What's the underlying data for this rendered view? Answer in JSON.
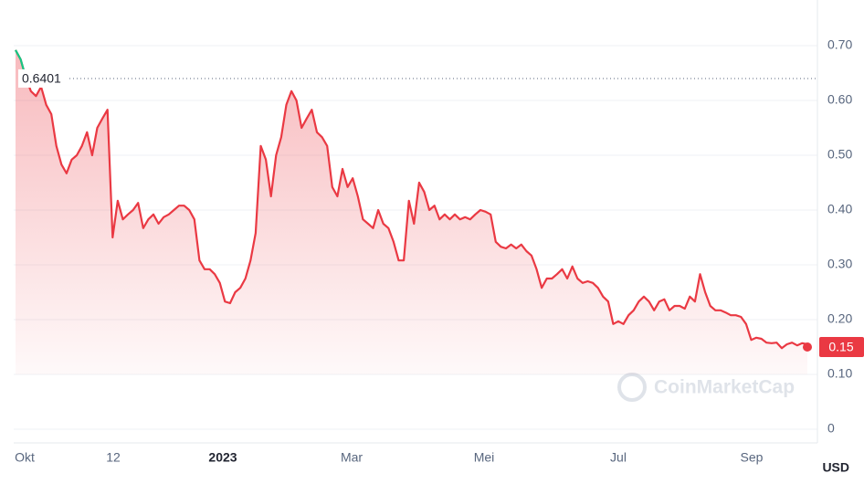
{
  "chart_data": {
    "type": "line",
    "x_labels": [
      "Okt",
      "12",
      "2023",
      "Mar",
      "Mei",
      "Jul",
      "Sep"
    ],
    "values": [
      0.692,
      0.675,
      0.642,
      0.617,
      0.608,
      0.625,
      0.592,
      0.575,
      0.517,
      0.483,
      0.467,
      0.492,
      0.5,
      0.517,
      0.542,
      0.5,
      0.55,
      0.567,
      0.583,
      0.35,
      0.417,
      0.383,
      0.392,
      0.4,
      0.413,
      0.367,
      0.383,
      0.392,
      0.375,
      0.387,
      0.392,
      0.4,
      0.408,
      0.408,
      0.4,
      0.383,
      0.308,
      0.292,
      0.292,
      0.283,
      0.267,
      0.233,
      0.23,
      0.25,
      0.258,
      0.275,
      0.308,
      0.358,
      0.517,
      0.492,
      0.425,
      0.5,
      0.533,
      0.592,
      0.617,
      0.6,
      0.55,
      0.567,
      0.583,
      0.542,
      0.533,
      0.517,
      0.442,
      0.425,
      0.475,
      0.442,
      0.458,
      0.425,
      0.383,
      0.375,
      0.367,
      0.4,
      0.375,
      0.367,
      0.342,
      0.308,
      0.308,
      0.417,
      0.375,
      0.45,
      0.433,
      0.4,
      0.408,
      0.383,
      0.392,
      0.383,
      0.392,
      0.383,
      0.387,
      0.383,
      0.392,
      0.4,
      0.397,
      0.392,
      0.342,
      0.333,
      0.33,
      0.337,
      0.33,
      0.337,
      0.325,
      0.317,
      0.292,
      0.258,
      0.275,
      0.275,
      0.283,
      0.292,
      0.275,
      0.297,
      0.275,
      0.267,
      0.27,
      0.267,
      0.258,
      0.242,
      0.233,
      0.192,
      0.197,
      0.192,
      0.208,
      0.217,
      0.233,
      0.242,
      0.233,
      0.217,
      0.233,
      0.237,
      0.217,
      0.225,
      0.225,
      0.22,
      0.242,
      0.233,
      0.283,
      0.25,
      0.225,
      0.217,
      0.217,
      0.213,
      0.208,
      0.208,
      0.205,
      0.192,
      0.163,
      0.167,
      0.165,
      0.158,
      0.157,
      0.158,
      0.148,
      0.155,
      0.158,
      0.153,
      0.157,
      0.155
    ],
    "up_color": "#16c784",
    "down_color": "#ea3943",
    "reference": 0.6401,
    "current_price": 0.15,
    "ylim": [
      0,
      0.78
    ],
    "yticks": [
      0,
      {
        "value": 0.1,
        "label": "0.10"
      },
      {
        "value": 0.2,
        "label": "0.20"
      },
      {
        "value": 0.3,
        "label": "0.30"
      },
      {
        "value": 0.4,
        "label": "0.40"
      },
      {
        "value": 0.5,
        "label": "0.50"
      },
      {
        "value": 0.6,
        "label": "0.60"
      },
      {
        "value": 0.7,
        "label": "0.70"
      }
    ],
    "grid": true,
    "currency": "USD",
    "watermark": "CoinMarketCap"
  }
}
